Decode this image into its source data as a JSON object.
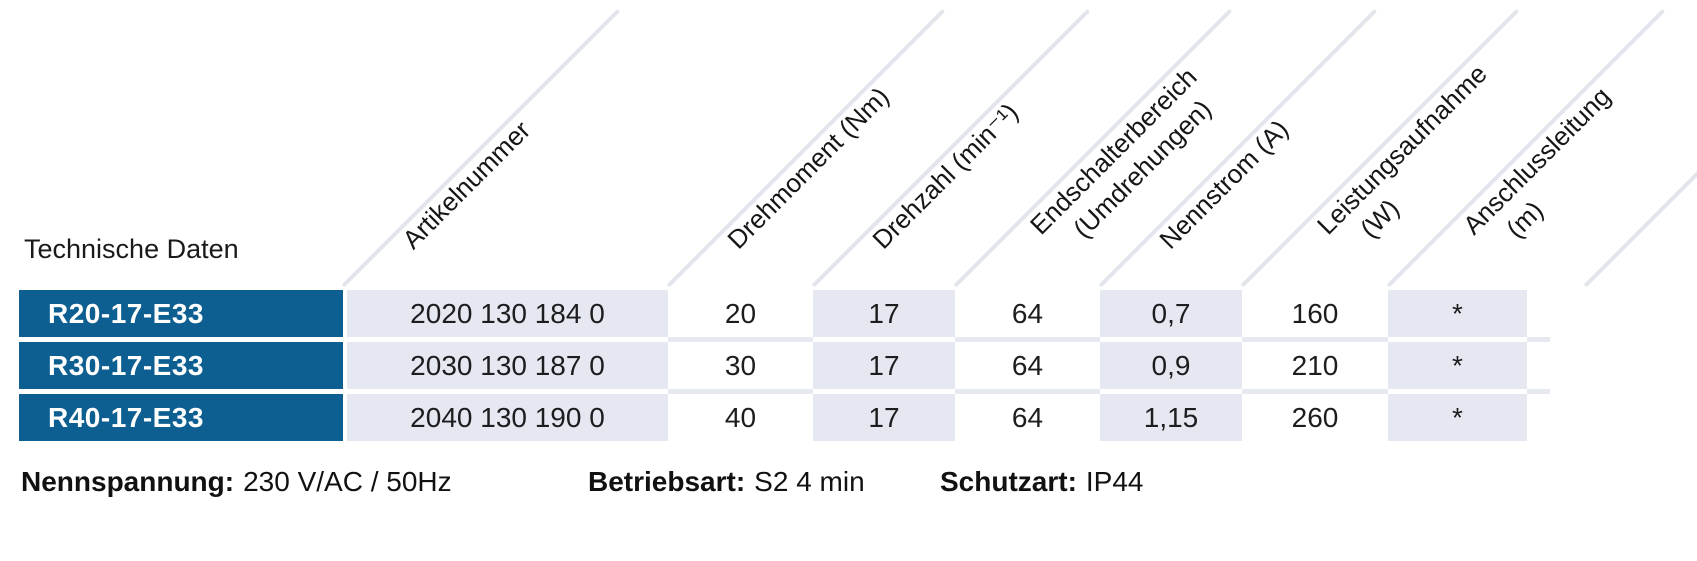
{
  "title": "Technische Daten",
  "table": {
    "headers": [
      {
        "line1": "Artikelnummer"
      },
      {
        "line1": "Drehmoment (Nm)"
      },
      {
        "line1": "Drehzahl (min⁻¹)"
      },
      {
        "line1": "Endschalterbereich",
        "line2": "(Umdrehungen)"
      },
      {
        "line1": "Nennstrom (A)"
      },
      {
        "line1": "Leistungsaufnahme",
        "line2": "(W)"
      },
      {
        "line1": "Anschlussleitung",
        "line2": "(m)"
      }
    ],
    "rows": [
      {
        "model": "R20-17-E33",
        "artikelnummer": "2020 130 184 0",
        "drehmoment": "20",
        "drehzahl": "17",
        "endschalterbereich": "64",
        "nennstrom": "0,7",
        "leistungsaufnahme": "160",
        "anschlussleitung": "*"
      },
      {
        "model": "R30-17-E33",
        "artikelnummer": "2030 130 187 0",
        "drehmoment": "30",
        "drehzahl": "17",
        "endschalterbereich": "64",
        "nennstrom": "0,9",
        "leistungsaufnahme": "210",
        "anschlussleitung": "*"
      },
      {
        "model": "R40-17-E33",
        "artikelnummer": "2040 130 190 0",
        "drehmoment": "40",
        "drehzahl": "17",
        "endschalterbereich": "64",
        "nennstrom": "1,15",
        "leistungsaufnahme": "260",
        "anschlussleitung": "*"
      }
    ]
  },
  "footer": {
    "nennspannung_label": "Nennspannung:",
    "nennspannung_value": "230 V/AC / 50Hz",
    "betriebsart_label": "Betriebsart:",
    "betriebsart_value": "S2 4 min",
    "schutzart_label": "Schutzart:",
    "schutzart_value": "IP44"
  },
  "colors": {
    "accent_blue": "#0d5e91",
    "cell_gray": "#e6e8f1",
    "row_separator": "#e7e9f1",
    "diagonal_line": "#e2e5eb"
  }
}
